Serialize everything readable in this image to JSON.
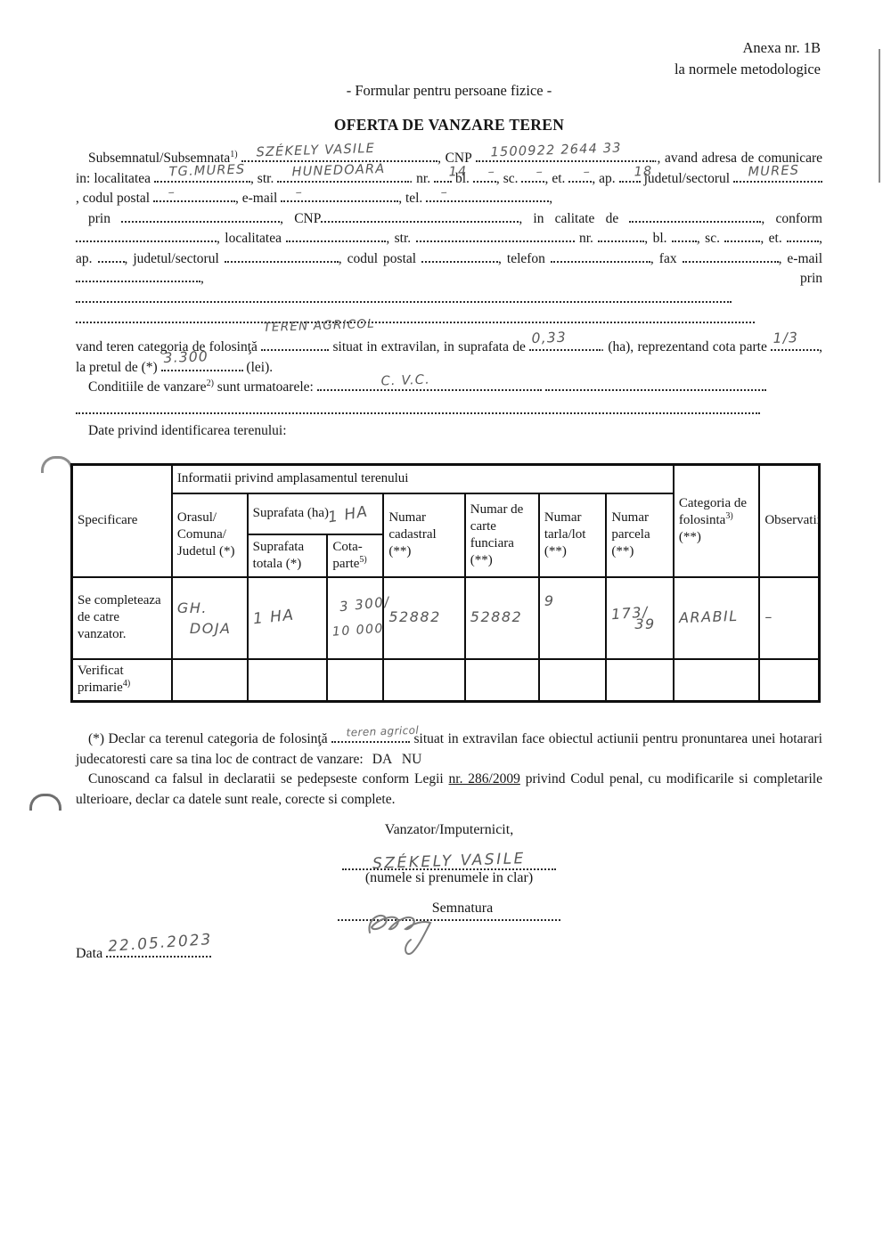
{
  "header": {
    "annex1": "Anexa nr. 1B",
    "annex2": "la normele metodologice",
    "form_type": "- Formular pentru persoane fizice -",
    "title": "OFERTA DE VANZARE TEREN"
  },
  "section_label": "Date privind identificarea terenului:",
  "paragraphs": {
    "p1": {
      "segments": [
        {
          "t": "Subsemnatul/Subsemnata"
        },
        {
          "sup": "1)"
        },
        {
          "t": " "
        },
        {
          "b": 220,
          "hw": "SZÉKELY  VASILE"
        },
        {
          "t": ", CNP "
        },
        {
          "b": 200,
          "hw": "1500922 2644 33"
        },
        {
          "t": "., avand adresa de comunicare in: localitatea "
        },
        {
          "b": 108,
          "hw": "TG.MURES"
        },
        {
          "t": ", str. "
        },
        {
          "b": 148,
          "hw": "HUNEDOARA"
        },
        {
          "t": ". nr. "
        },
        {
          "b": 20,
          "hw": "14"
        },
        {
          "t": " bl. "
        },
        {
          "b": 26,
          "hw": "–",
          "hwc": "dash-hw"
        },
        {
          "t": ", sc. "
        },
        {
          "b": 26,
          "hw": "–",
          "hwc": "dash-hw"
        },
        {
          "t": ", et. "
        },
        {
          "b": 26,
          "hw": "–",
          "hwc": "dash-hw"
        },
        {
          "t": ", ap. "
        },
        {
          "b": 24,
          "hw": "18"
        },
        {
          "t": " judetul/sectorul "
        },
        {
          "b": 100,
          "hw": "MURES"
        },
        {
          "t": ", codul postal "
        },
        {
          "b": 92,
          "hw": "–",
          "hwc": "dash-hw"
        },
        {
          "t": ", e-mail "
        },
        {
          "b": 132,
          "hw": "–",
          "hwc": "dash-hw"
        },
        {
          "t": ", tel. "
        },
        {
          "b": 138,
          "hw": "–",
          "hwc": "dash-hw"
        },
        {
          "t": ","
        }
      ]
    },
    "p2": {
      "segments": [
        {
          "t": "prin "
        },
        {
          "b": 178
        },
        {
          "t": ", CNP"
        },
        {
          "b": 222
        },
        {
          "t": ", in calitate de "
        },
        {
          "b": 148
        },
        {
          "t": ", conform "
        },
        {
          "b": 158
        },
        {
          "t": ", localitatea "
        },
        {
          "b": 112
        },
        {
          "t": ", str. "
        },
        {
          "b": 178
        },
        {
          "t": " nr. "
        },
        {
          "b": 52
        },
        {
          "t": ", bl. "
        },
        {
          "b": 28
        },
        {
          "t": ", sc. "
        },
        {
          "b": 40
        },
        {
          "t": ", et. "
        },
        {
          "b": 36
        },
        {
          "t": ", ap. "
        },
        {
          "b": 30
        },
        {
          "t": ", judetul/sectorul "
        },
        {
          "b": 128
        },
        {
          "t": ", codul postal "
        },
        {
          "b": 86
        },
        {
          "t": ", telefon "
        },
        {
          "b": 112
        },
        {
          "t": ", fax "
        },
        {
          "b": 108
        },
        {
          "t": ", e-mail "
        },
        {
          "b": 140
        },
        {
          "t": ", prin"
        },
        {
          "b": 736
        }
      ]
    },
    "p3": {
      "segments": [
        {
          "t": "vand teren categoria de folosinţă "
        },
        {
          "b": 76,
          "hw": "TEREN AGRICOL",
          "hwc": "hw-above"
        },
        {
          "t": " situat in extravilan, in suprafata de "
        },
        {
          "b": 80,
          "hw": "0,33",
          "hwc": "hw-raise"
        },
        {
          "t": ". (ha), reprezentand cota parte "
        },
        {
          "b": 54,
          "hw": "1/3",
          "hwc": "hw-raise"
        },
        {
          "t": ", la pretul de (*) "
        },
        {
          "b": 92,
          "hw": "3.300",
          "hwc": "hw-raise"
        },
        {
          "t": " (lei)."
        }
      ]
    },
    "p4": {
      "segments": [
        {
          "t": "Conditiile de vanzare"
        },
        {
          "sup": "2)"
        },
        {
          "t": " sunt urmatoarele: "
        },
        {
          "b": 252,
          "hw": "C. V.C.",
          "hwc": "hw-mid"
        },
        {
          "t": " "
        },
        {
          "b": 248
        }
      ]
    },
    "p5": {
      "segments": [
        {
          "t": "(*) Declar ca terenul categoria de folosinţă "
        },
        {
          "b": 88,
          "hw": "teren agricol",
          "hwc": "hw-sm"
        },
        {
          "t": " situat in extravilan face obiectul actiunii pentru pronuntarea unei hotarari judecatoresti care sa tina loc de contract de vanzare:"
        },
        {
          "t": "DA   NU",
          "cls": "danu"
        }
      ]
    },
    "p6": {
      "segments": [
        {
          "t": "Cunoscand ca falsul in declaratii se pedepseste conform Legii "
        },
        {
          "u": "nr. 286/2009"
        },
        {
          "t": " privind Codul penal, cu modificarile si completarile ulterioare, declar ca datele sunt reale, corecte si complete."
        }
      ]
    }
  },
  "table": {
    "info_span": "Informatii privind amplasamentul terenului",
    "cols": {
      "specificare": "Specificare",
      "oras": "Orasul/ Comuna/ Judetul (*)",
      "suprafata_ha": "Suprafata (ha)",
      "suprafata_ha_hw": "1 HA",
      "suprafata_totala": "Suprafata totala (*)",
      "cota": "Cota-parte",
      "cota_sup": "5)",
      "cadastral": "Numar cadastral (**)",
      "carte": "Numar de carte funciara (**)",
      "tarla": "Numar tarla/lot (**)",
      "parcela": "Numar parcela (**)",
      "categoria": "Categoria de folosinta",
      "categoria_sup": "3)",
      "categoria_star": "(**)",
      "observatii": "Observatii"
    },
    "row_vanzator": {
      "label": "Se completeaza de catre vanzator.",
      "oras_line1": "GH.",
      "oras_line2": "DOJA",
      "suprafata": "1 HA",
      "cota_top": "3 300/",
      "cota_bottom": "10 000",
      "cadastral": "52882",
      "carte": "52882",
      "tarla": "9",
      "parcela_top": "173/",
      "parcela_bottom": "39",
      "categoria": "ARABIL",
      "observatii": "–"
    },
    "row_primarie": {
      "label": "Verificat primarie",
      "label_sup": "4)"
    }
  },
  "signature": {
    "role": "Vanzator/Imputernicit,",
    "name_hw": "SZÉKELY  VASILE",
    "caption": "(numele si prenumele in clar)",
    "semnatura": "Semnatura",
    "data_label": "Data",
    "date_hw": "22.05.2023"
  }
}
